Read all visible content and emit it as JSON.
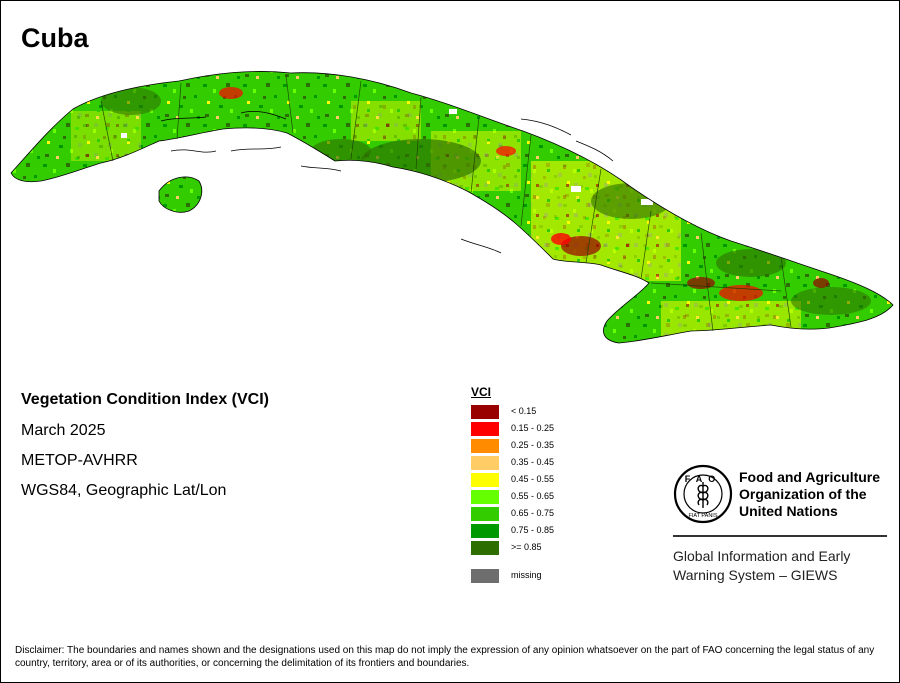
{
  "map": {
    "title": "Cuba",
    "info_lines": {
      "index_name": "Vegetation Condition Index (VCI)",
      "period": "March 2025",
      "sensor": "METOP-AVHRR",
      "projection": "WGS84, Geographic Lat/Lon"
    }
  },
  "legend": {
    "title": "VCI",
    "items": [
      {
        "label": "< 0.15",
        "color": "#990000"
      },
      {
        "label": "0.15 - 0.25",
        "color": "#ff0000"
      },
      {
        "label": "0.25 - 0.35",
        "color": "#ff8c00"
      },
      {
        "label": "0.35 - 0.45",
        "color": "#ffcc66"
      },
      {
        "label": "0.45 - 0.55",
        "color": "#ffff00"
      },
      {
        "label": "0.55 - 0.65",
        "color": "#66ff00"
      },
      {
        "label": "0.65 - 0.75",
        "color": "#33cc00"
      },
      {
        "label": "0.75 - 0.85",
        "color": "#009900"
      },
      {
        "label": ">= 0.85",
        "color": "#2d6e00"
      }
    ],
    "missing": {
      "label": "missing",
      "color": "#6e6e6e"
    }
  },
  "organization": {
    "name_lines": [
      "Food and Agriculture",
      "Organization of the",
      "United Nations"
    ],
    "logo_text": "FAO",
    "logo_motto": "FIAT PANIS",
    "program_lines": [
      "Global Information and Early",
      "Warning System – GIEWS"
    ]
  },
  "disclaimer": "Disclaimer: The boundaries and names shown and the designations used on this map do not imply the expression of any opinion whatsoever on the part of FAO concerning the legal status of any country, territory, area or of its authorities, or concerning the delimitation of its frontiers and boundaries."
}
